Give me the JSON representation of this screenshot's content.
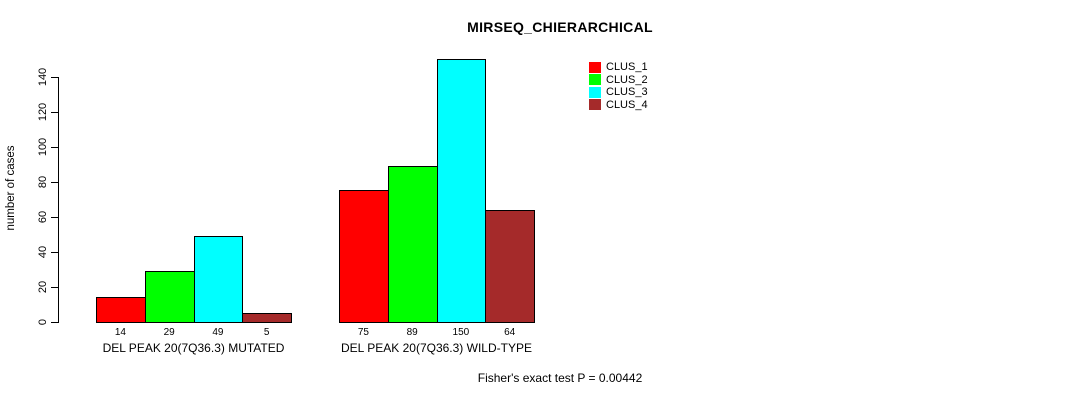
{
  "chart_data": {
    "type": "bar",
    "title": "MIRSEQ_CHIERARCHICAL",
    "ylabel": "number of cases",
    "xlabel": "",
    "ylim": [
      0,
      150
    ],
    "yticks": [
      0,
      20,
      40,
      60,
      80,
      100,
      120,
      140
    ],
    "grid": false,
    "categories": [
      "DEL PEAK 20(7Q36.3) MUTATED",
      "DEL PEAK 20(7Q36.3) WILD-TYPE"
    ],
    "series": [
      {
        "name": "CLUS_1",
        "color": "#ff0000",
        "values": [
          14,
          75
        ]
      },
      {
        "name": "CLUS_2",
        "color": "#00ff00",
        "values": [
          29,
          89
        ]
      },
      {
        "name": "CLUS_3",
        "color": "#00ffff",
        "values": [
          49,
          150
        ]
      },
      {
        "name": "CLUS_4",
        "color": "#a52a2a",
        "values": [
          5,
          64
        ]
      }
    ],
    "bar_value_labels": {
      "DEL PEAK 20(7Q36.3) MUTATED": [
        14,
        29,
        49,
        5
      ],
      "DEL PEAK 20(7Q36.3) WILD-TYPE": [
        75,
        89,
        150,
        64
      ]
    },
    "legend": {
      "position": "top-right",
      "entries": [
        "CLUS_1",
        "CLUS_2",
        "CLUS_3",
        "CLUS_4"
      ]
    },
    "annotation": "Fisher's exact test P = 0.00442"
  }
}
